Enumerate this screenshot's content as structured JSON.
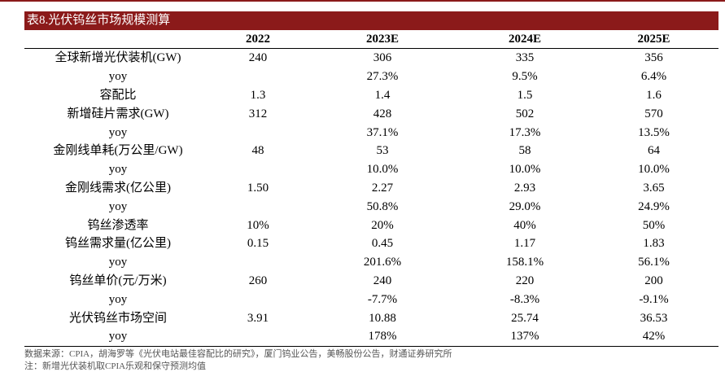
{
  "title": "表8.光伏钨丝市场规模测算",
  "columns": [
    "",
    "2022",
    "2023E",
    "2024E",
    "2025E"
  ],
  "rows": [
    [
      "全球新增光伏装机(GW)",
      "240",
      "306",
      "335",
      "356"
    ],
    [
      "yoy",
      "",
      "27.3%",
      "9.5%",
      "6.4%"
    ],
    [
      "容配比",
      "1.3",
      "1.4",
      "1.5",
      "1.6"
    ],
    [
      "新增硅片需求(GW)",
      "312",
      "428",
      "502",
      "570"
    ],
    [
      "yoy",
      "",
      "37.1%",
      "17.3%",
      "13.5%"
    ],
    [
      "金刚线单耗(万公里/GW)",
      "48",
      "53",
      "58",
      "64"
    ],
    [
      "yoy",
      "",
      "10.0%",
      "10.0%",
      "10.0%"
    ],
    [
      "金刚线需求(亿公里)",
      "1.50",
      "2.27",
      "2.93",
      "3.65"
    ],
    [
      "yoy",
      "",
      "50.8%",
      "29.0%",
      "24.9%"
    ],
    [
      "钨丝渗透率",
      "10%",
      "20%",
      "40%",
      "50%"
    ],
    [
      "钨丝需求量(亿公里)",
      "0.15",
      "0.45",
      "1.17",
      "1.83"
    ],
    [
      "yoy",
      "",
      "201.6%",
      "158.1%",
      "56.1%"
    ],
    [
      "钨丝单价(元/万米)",
      "260",
      "240",
      "220",
      "200"
    ],
    [
      "yoy",
      "",
      "-7.7%",
      "-8.3%",
      "-9.1%"
    ],
    [
      "光伏钨丝市场空间",
      "3.91",
      "10.88",
      "25.74",
      "36.53"
    ],
    [
      "yoy",
      "",
      "178%",
      "137%",
      "42%"
    ]
  ],
  "notes": [
    "数据来源：CPIA，胡海罗等《光伏电站最佳容配比的研究》，厦门钨业公告，美畅股份公告，财通证券研究所",
    "注：新增光伏装机取CPIA乐观和保守预测均值"
  ],
  "colors": {
    "accent": "#8B1A1A",
    "title_text": "#ffffff",
    "note_text": "#555555"
  }
}
